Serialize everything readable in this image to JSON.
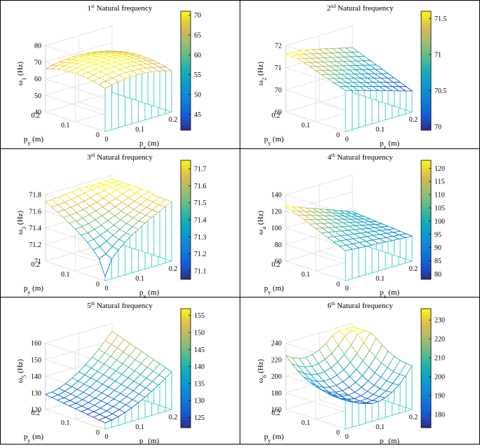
{
  "figure": {
    "colormap": "parula",
    "wire_side_color": "#3fd2c2",
    "panel_border_color": "#000000"
  },
  "chart_data": [
    {
      "type": "surface",
      "title": {
        "prefix": "1",
        "sup": "st",
        "rest": " Natural frequency"
      },
      "zlabel": {
        "sym": "ω",
        "sub": "1",
        "unit": " (Hz)"
      },
      "xlabel": {
        "sym": "p",
        "sub": "x",
        "unit": " (m)"
      },
      "ylabel": {
        "sym": "p",
        "sub": "y",
        "unit": " (m)"
      },
      "x_ticks": [
        "0",
        "0.1",
        "0.2"
      ],
      "y_ticks": [
        "0",
        "0.1",
        "0.2"
      ],
      "x_range": [
        0,
        0.2
      ],
      "y_range": [
        0,
        0.2
      ],
      "z_ticks": [
        40,
        50,
        60,
        70,
        80
      ],
      "zlim": [
        40,
        80
      ],
      "colorbar_ticks": [
        45,
        50,
        55,
        60,
        65,
        70
      ],
      "clim": [
        41,
        71
      ],
      "grid": true,
      "surface_model": {
        "kind": "dome",
        "base": 66,
        "amp": 6,
        "px0": 0.1,
        "py0": 0.1,
        "note": "surface approx 59-71 Hz, maximum near center"
      }
    },
    {
      "type": "surface",
      "title": {
        "prefix": "2",
        "sup": "nd",
        "rest": " Natural frequency"
      },
      "zlabel": {
        "sym": "ω",
        "sub": "2",
        "unit": " (Hz)"
      },
      "xlabel": {
        "sym": "p",
        "sub": "x",
        "unit": " (m)"
      },
      "ylabel": {
        "sym": "p",
        "sub": "y",
        "unit": " (m)"
      },
      "x_ticks": [
        "0",
        "0.1",
        "0.2"
      ],
      "y_ticks": [
        "0",
        "0.1",
        "0.2"
      ],
      "x_range": [
        0,
        0.2
      ],
      "y_range": [
        0,
        0.2
      ],
      "z_ticks": [
        69,
        70,
        71,
        72
      ],
      "zlim": [
        69,
        72
      ],
      "colorbar_ticks": [
        70,
        70.5,
        71,
        71.5
      ],
      "clim": [
        69.95,
        71.6
      ],
      "grid": true,
      "surface_model": {
        "kind": "ramp",
        "zmin": 69.95,
        "zmax": 71.6
      }
    },
    {
      "type": "surface",
      "title": {
        "prefix": "3",
        "sup": "rd",
        "rest": " Natural frequency"
      },
      "zlabel": {
        "sym": "ω",
        "sub": "3",
        "unit": " (Hz)"
      },
      "xlabel": {
        "sym": "p",
        "sub": "x",
        "unit": " (m)"
      },
      "ylabel": {
        "sym": "p",
        "sub": "y",
        "unit": " (m)"
      },
      "x_ticks": [
        "0",
        "0.1",
        "0.2"
      ],
      "y_ticks": [
        "0",
        "0.1",
        "0.2"
      ],
      "x_range": [
        0,
        0.2
      ],
      "y_range": [
        0,
        0.2
      ],
      "z_ticks": [
        71,
        71.2,
        71.4,
        71.6,
        71.8
      ],
      "zlim": [
        71,
        71.8
      ],
      "colorbar_ticks": [
        71.1,
        71.2,
        71.3,
        71.4,
        71.5,
        71.6,
        71.7
      ],
      "clim": [
        71.05,
        71.75
      ],
      "grid": true,
      "surface_model": {
        "kind": "pit",
        "zmin": 71.05,
        "zmax": 71.75
      }
    },
    {
      "type": "surface",
      "title": {
        "prefix": "4",
        "sup": "th",
        "rest": " Natural frequency"
      },
      "zlabel": {
        "sym": "ω",
        "sub": "4",
        "unit": " (Hz)"
      },
      "xlabel": {
        "sym": "p",
        "sub": "x",
        "unit": " (m)"
      },
      "ylabel": {
        "sym": "p",
        "sub": "y",
        "unit": " (m)"
      },
      "x_ticks": [
        "0",
        "0.1",
        "0.2"
      ],
      "y_ticks": [
        "0",
        "0.1",
        "0.2"
      ],
      "x_range": [
        0,
        0.2
      ],
      "y_range": [
        0,
        0.2
      ],
      "z_ticks": [
        60,
        80,
        100,
        120,
        140
      ],
      "zlim": [
        60,
        140
      ],
      "colorbar_ticks": [
        80,
        85,
        90,
        95,
        100,
        105,
        110,
        115,
        120
      ],
      "clim": [
        78,
        123
      ],
      "grid": true,
      "surface_model": {
        "kind": "ridge",
        "zmin": 80,
        "zmax": 120
      }
    },
    {
      "type": "surface",
      "title": {
        "prefix": "5",
        "sup": "th",
        "rest": " Natural frequency"
      },
      "zlabel": {
        "sym": "ω",
        "sub": "5",
        "unit": " (Hz)"
      },
      "xlabel": {
        "sym": "p",
        "sub": "x",
        "unit": " (m)"
      },
      "ylabel": {
        "sym": "p",
        "sub": "y",
        "unit": " (m)"
      },
      "x_ticks": [
        "0",
        "0.1",
        "0.2"
      ],
      "y_ticks": [
        "0",
        "0.1",
        "0.2"
      ],
      "x_range": [
        0,
        0.2
      ],
      "y_range": [
        0,
        0.2
      ],
      "z_ticks": [
        120,
        130,
        140,
        150,
        160
      ],
      "zlim": [
        120,
        160
      ],
      "colorbar_ticks": [
        125,
        130,
        135,
        140,
        145,
        150,
        155
      ],
      "clim": [
        122,
        157
      ],
      "grid": true,
      "surface_model": {
        "kind": "valley",
        "zmin": 122,
        "zmax": 157
      }
    },
    {
      "type": "surface",
      "title": {
        "prefix": "6",
        "sup": "th",
        "rest": " Natural frequency"
      },
      "zlabel": {
        "sym": "ω",
        "sub": "6",
        "unit": " (Hz)"
      },
      "xlabel": {
        "sym": "p",
        "sub": "x",
        "unit": " (m)"
      },
      "ylabel": {
        "sym": "p",
        "sub": "y",
        "unit": " (m)"
      },
      "x_ticks": [
        "0",
        "0.1",
        "0.2"
      ],
      "y_ticks": [
        "0",
        "0.1",
        "0.2"
      ],
      "x_range": [
        0,
        0.2
      ],
      "y_range": [
        0,
        0.2
      ],
      "z_ticks": [
        160,
        180,
        200,
        220,
        240
      ],
      "zlim": [
        160,
        240
      ],
      "colorbar_ticks": [
        180,
        190,
        200,
        210,
        220,
        230
      ],
      "clim": [
        173,
        236
      ],
      "grid": true,
      "surface_model": {
        "kind": "bowl",
        "zmin": 173,
        "zmax": 236
      }
    }
  ]
}
